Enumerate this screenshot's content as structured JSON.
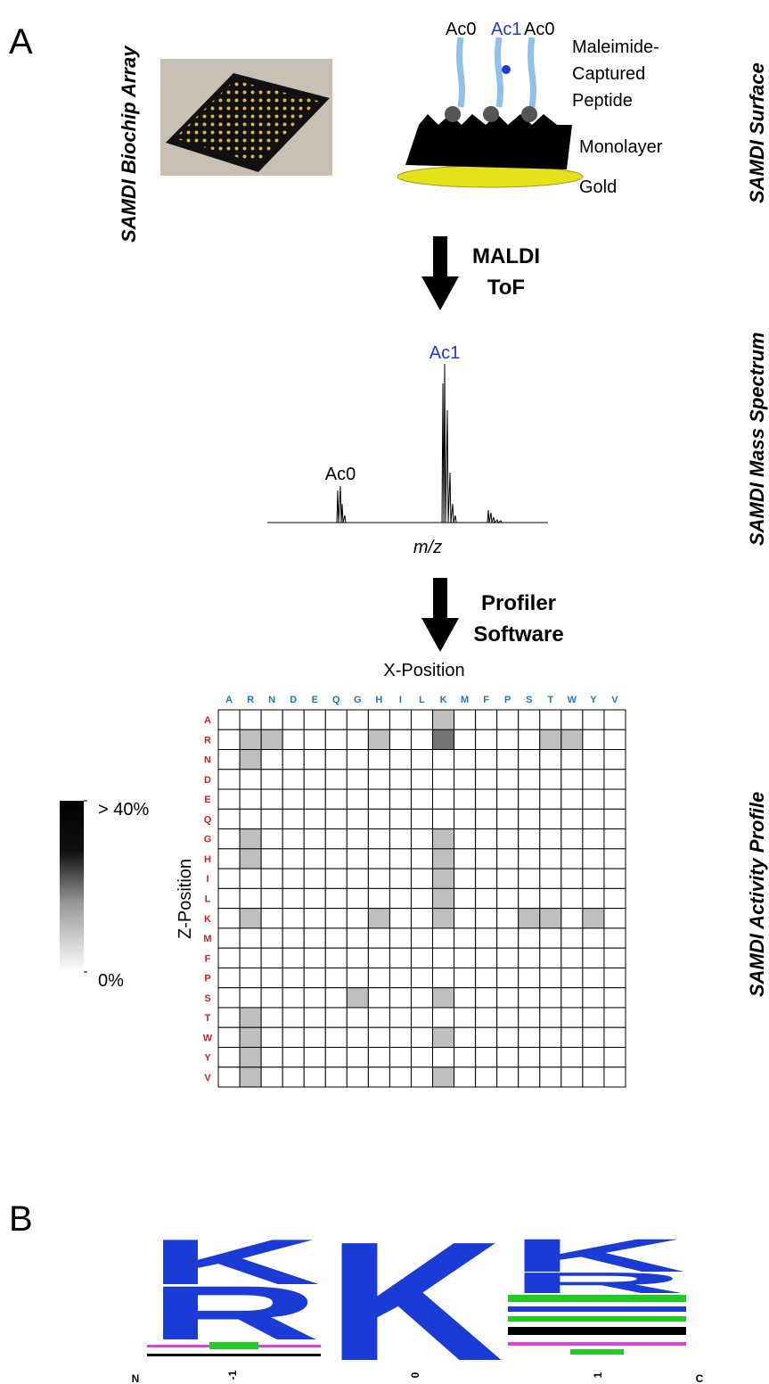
{
  "panel_a": {
    "label": "A",
    "side_labels": [
      "SAMDI Biochip Array",
      "SAMDI Surface",
      "SAMDI Mass Spectrum",
      "SAMDI Activity Profile"
    ]
  },
  "surface": {
    "peptide_labels": [
      "Ac0",
      "Ac1",
      "Ac0"
    ],
    "peptide_description": [
      "Maleimide-",
      "Captured",
      "Peptide"
    ],
    "monolayer": "Monolayer",
    "gold": "Gold"
  },
  "arrows": [
    [
      "MALDI",
      "ToF"
    ],
    [
      "Profiler",
      "Software"
    ]
  ],
  "spectrum": {
    "peak_labels": [
      "Ac0",
      "Ac1"
    ],
    "x_label": "m/z"
  },
  "heatmap": {
    "x_title": "X-Position",
    "y_title": "Z-Position",
    "x_labels": [
      "A",
      "R",
      "N",
      "D",
      "E",
      "Q",
      "G",
      "H",
      "I",
      "L",
      "K",
      "M",
      "F",
      "P",
      "S",
      "T",
      "W",
      "Y",
      "V"
    ],
    "y_labels": [
      "A",
      "R",
      "N",
      "D",
      "E",
      "Q",
      "G",
      "H",
      "I",
      "L",
      "K",
      "M",
      "F",
      "P",
      "S",
      "T",
      "W",
      "Y",
      "V"
    ],
    "values": [
      [
        0,
        0,
        0,
        0,
        0,
        0,
        0,
        0,
        0,
        0,
        10,
        0,
        0,
        0,
        0,
        0,
        0,
        0,
        0
      ],
      [
        0,
        10,
        10,
        0,
        0,
        0,
        0,
        10,
        0,
        0,
        22,
        0,
        0,
        0,
        0,
        10,
        10,
        0,
        0
      ],
      [
        0,
        10,
        0,
        0,
        0,
        0,
        0,
        0,
        0,
        0,
        0,
        0,
        0,
        0,
        0,
        0,
        0,
        0,
        0
      ],
      [
        0,
        0,
        0,
        0,
        0,
        0,
        0,
        0,
        0,
        0,
        0,
        0,
        0,
        0,
        0,
        0,
        0,
        0,
        0
      ],
      [
        0,
        0,
        0,
        0,
        0,
        0,
        0,
        0,
        0,
        0,
        0,
        0,
        0,
        0,
        0,
        0,
        0,
        0,
        0
      ],
      [
        0,
        0,
        0,
        0,
        0,
        0,
        0,
        0,
        0,
        0,
        0,
        0,
        0,
        0,
        0,
        0,
        0,
        0,
        0
      ],
      [
        0,
        10,
        0,
        0,
        0,
        0,
        0,
        0,
        0,
        0,
        10,
        0,
        0,
        0,
        0,
        0,
        0,
        0,
        0
      ],
      [
        0,
        10,
        0,
        0,
        0,
        0,
        0,
        0,
        0,
        0,
        10,
        0,
        0,
        0,
        0,
        0,
        0,
        0,
        0
      ],
      [
        0,
        0,
        0,
        0,
        0,
        0,
        0,
        0,
        0,
        0,
        10,
        0,
        0,
        0,
        0,
        0,
        0,
        0,
        0
      ],
      [
        0,
        0,
        0,
        0,
        0,
        0,
        0,
        0,
        0,
        0,
        10,
        0,
        0,
        0,
        0,
        0,
        0,
        0,
        0
      ],
      [
        0,
        10,
        0,
        0,
        0,
        0,
        0,
        10,
        0,
        0,
        10,
        0,
        0,
        0,
        10,
        10,
        0,
        10,
        0
      ],
      [
        0,
        0,
        0,
        0,
        0,
        0,
        0,
        0,
        0,
        0,
        0,
        0,
        0,
        0,
        0,
        0,
        0,
        0,
        0
      ],
      [
        0,
        0,
        0,
        0,
        0,
        0,
        0,
        0,
        0,
        0,
        0,
        0,
        0,
        0,
        0,
        0,
        0,
        0,
        0
      ],
      [
        0,
        0,
        0,
        0,
        0,
        0,
        0,
        0,
        0,
        0,
        0,
        0,
        0,
        0,
        0,
        0,
        0,
        0,
        0
      ],
      [
        0,
        0,
        0,
        0,
        0,
        0,
        10,
        0,
        0,
        0,
        10,
        0,
        0,
        0,
        0,
        0,
        0,
        0,
        0
      ],
      [
        0,
        10,
        0,
        0,
        0,
        0,
        0,
        0,
        0,
        0,
        0,
        0,
        0,
        0,
        0,
        0,
        0,
        0,
        0
      ],
      [
        0,
        10,
        0,
        0,
        0,
        0,
        0,
        0,
        0,
        0,
        10,
        0,
        0,
        0,
        0,
        0,
        0,
        0,
        0
      ],
      [
        0,
        10,
        0,
        0,
        0,
        0,
        0,
        0,
        0,
        0,
        0,
        0,
        0,
        0,
        0,
        0,
        0,
        0,
        0
      ],
      [
        0,
        10,
        0,
        0,
        0,
        0,
        0,
        0,
        0,
        0,
        10,
        0,
        0,
        0,
        0,
        0,
        0,
        0,
        0
      ]
    ],
    "color_range": [
      0,
      40
    ],
    "colorbar_ticks": [
      {
        "value": 40,
        "label": "> 40%"
      },
      {
        "value": 0,
        "label": "0%"
      }
    ]
  },
  "panel_b": {
    "label": "B",
    "x_labels": [
      "N",
      "-1",
      "0",
      "1",
      "C"
    ],
    "columns": [
      [
        "K",
        "R"
      ],
      [
        "K"
      ],
      [
        "K",
        "R"
      ]
    ]
  }
}
